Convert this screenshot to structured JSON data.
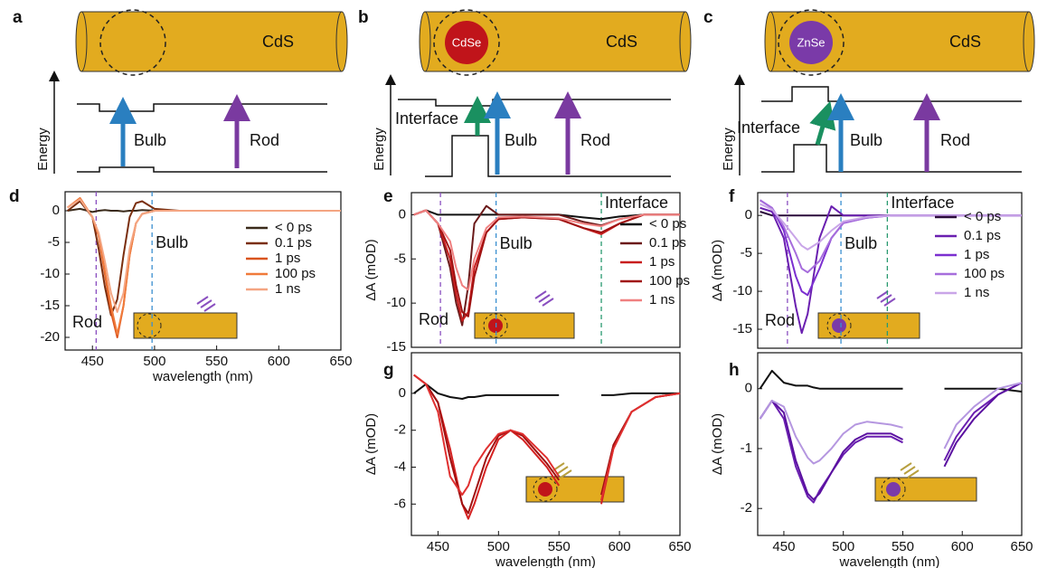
{
  "diagrams": [
    {
      "label": "a",
      "rod": "CdS",
      "energy_axis": "Energy",
      "arrows": [
        "Bulb",
        "Rod"
      ]
    },
    {
      "label": "b",
      "core": "CdSe",
      "rod": "CdS",
      "energy_axis": "Energy",
      "arrows": [
        "Interface",
        "Bulb",
        "Rod"
      ]
    },
    {
      "label": "c",
      "core": "ZnSe",
      "rod": "CdS",
      "energy_axis": "Energy",
      "arrows": [
        "Interface",
        "Bulb",
        "Rod"
      ]
    }
  ],
  "chart_data": [
    {
      "type": "line",
      "label": "d",
      "x_label": "wavelength (nm)",
      "x": [
        430,
        440,
        450,
        455,
        460,
        465,
        470,
        475,
        480,
        485,
        490,
        500,
        520,
        550,
        600,
        650
      ],
      "series": [
        {
          "name": "< 0 ps",
          "color": "#3a2a1a",
          "values": [
            0,
            0.3,
            -0.2,
            0,
            0.1,
            0,
            0,
            -0.1,
            0,
            0,
            0.1,
            0,
            0,
            0,
            0,
            0
          ]
        },
        {
          "name": "0.1 ps",
          "color": "#7a2e0e",
          "values": [
            0,
            1.5,
            -1,
            -6,
            -12,
            -16.5,
            -14,
            -7,
            -1,
            1.2,
            1.5,
            0.3,
            0,
            0,
            0,
            0
          ]
        },
        {
          "name": "1 ps",
          "color": "#d9541e",
          "values": [
            0.5,
            2,
            -1,
            -4,
            -10,
            -16,
            -20,
            -15,
            -7,
            -2,
            -0.5,
            0,
            0,
            0,
            0,
            0
          ]
        },
        {
          "name": "100 ps",
          "color": "#f07a3a",
          "values": [
            0.5,
            2,
            -1,
            -4,
            -9.5,
            -15,
            -19.5,
            -15,
            -7,
            -2,
            -0.5,
            0,
            0,
            0,
            0,
            0
          ]
        },
        {
          "name": "1 ns",
          "color": "#f4a582",
          "values": [
            0.5,
            1.8,
            -1,
            -3.5,
            -8,
            -13,
            -16,
            -13,
            -6,
            -2,
            -0.5,
            0,
            0,
            0,
            0,
            0
          ]
        }
      ],
      "xlim": [
        428,
        650
      ],
      "ylim": [
        -22,
        3
      ],
      "xticks": [
        450,
        500,
        550,
        600,
        650
      ],
      "yticks": [
        0,
        -5,
        -10,
        -15,
        -20
      ],
      "vlines": [
        {
          "x": 453,
          "color": "#8a4fc0",
          "text": "Rod"
        },
        {
          "x": 498,
          "color": "#3a8fd0",
          "text": "Bulb"
        }
      ],
      "legend": "right"
    },
    {
      "type": "line",
      "label": "e",
      "y_label": "ΔA (mOD)",
      "x": [
        430,
        440,
        450,
        460,
        465,
        470,
        475,
        480,
        490,
        500,
        520,
        550,
        570,
        585,
        600,
        620,
        650
      ],
      "series": [
        {
          "name": "< 0 ps",
          "color": "#111111",
          "values": [
            0,
            0.5,
            0,
            0,
            0,
            0,
            0,
            0,
            0,
            0,
            0,
            0,
            -0.3,
            -0.5,
            -0.2,
            0,
            0
          ]
        },
        {
          "name": "0.1 ps",
          "color": "#6b1a1a",
          "values": [
            0,
            0.5,
            -1,
            -6,
            -10,
            -12.5,
            -8,
            -1,
            1,
            0,
            0,
            0,
            -0.8,
            -1.2,
            -0.5,
            0,
            0
          ]
        },
        {
          "name": "1 ps",
          "color": "#c81e1e",
          "values": [
            0,
            0.5,
            -1,
            -5,
            -9,
            -12,
            -11,
            -6,
            -2,
            -0.5,
            -0.3,
            -0.5,
            -1.5,
            -2.2,
            -1,
            0,
            0
          ]
        },
        {
          "name": "100 ps",
          "color": "#a01212",
          "values": [
            0,
            0.5,
            -1,
            -4,
            -8,
            -11,
            -11.5,
            -7,
            -2,
            -0.5,
            -0.3,
            -0.5,
            -1.5,
            -2,
            -1,
            0,
            0
          ]
        },
        {
          "name": "1 ns",
          "color": "#f08080",
          "values": [
            0,
            0.5,
            -1,
            -3,
            -6,
            -8,
            -8.5,
            -5,
            -1.5,
            -0.3,
            -0.2,
            -0.4,
            -1,
            -1.3,
            -0.5,
            0,
            0
          ]
        }
      ],
      "xlim": [
        428,
        650
      ],
      "ylim": [
        -15,
        2.5
      ],
      "yticks": [
        0,
        -5,
        -10,
        -15
      ],
      "vlines": [
        {
          "x": 452,
          "color": "#8a4fc0",
          "text": "Rod"
        },
        {
          "x": 498,
          "color": "#3a8fd0",
          "text": "Bulb"
        },
        {
          "x": 585,
          "color": "#2a9a70",
          "text": "Interface"
        }
      ],
      "legend": "right"
    },
    {
      "type": "line",
      "label": "f",
      "y_label": "ΔA (mOD)",
      "x": [
        430,
        440,
        450,
        460,
        465,
        470,
        480,
        490,
        500,
        520,
        540,
        560,
        600,
        650
      ],
      "series": [
        {
          "name": "< 0 ps",
          "color": "#2a0a3a",
          "values": [
            0.5,
            0,
            0,
            0,
            0,
            0,
            0,
            0,
            0,
            0,
            0,
            0,
            0,
            0
          ]
        },
        {
          "name": "0.1 ps",
          "color": "#6a1fb0",
          "values": [
            1,
            0.5,
            -3,
            -12,
            -15.5,
            -13,
            -3,
            1.2,
            0,
            0,
            0,
            0,
            0,
            0
          ]
        },
        {
          "name": "1 ps",
          "color": "#7b2fd0",
          "values": [
            2,
            1,
            -2,
            -8,
            -10,
            -10.5,
            -7,
            -3,
            -1,
            -0.3,
            0,
            0,
            0,
            0
          ]
        },
        {
          "name": "100 ps",
          "color": "#a66ddc",
          "values": [
            2,
            1,
            -1.5,
            -5,
            -7,
            -7.5,
            -6,
            -3,
            -1,
            -0.3,
            0,
            0,
            0,
            0
          ]
        },
        {
          "name": "1 ns",
          "color": "#c9a5e8",
          "values": [
            1.5,
            0.8,
            -1,
            -3,
            -4,
            -4.5,
            -3.5,
            -2,
            -0.8,
            -0.2,
            0,
            0,
            0,
            0
          ]
        }
      ],
      "xlim": [
        428,
        650
      ],
      "ylim": [
        -17.5,
        3
      ],
      "yticks": [
        0,
        -5,
        -10,
        -15
      ],
      "vlines": [
        {
          "x": 453,
          "color": "#8a4fc0",
          "text": "Rod"
        },
        {
          "x": 498,
          "color": "#3a8fd0",
          "text": "Bulb"
        },
        {
          "x": 537,
          "color": "#2a9a70",
          "text": "Interface"
        }
      ],
      "legend": "right"
    },
    {
      "type": "line",
      "label": "g",
      "y_label": "ΔA (mOD)",
      "x_label": "wavelength (nm)",
      "x": [
        430,
        440,
        450,
        460,
        470,
        475,
        480,
        490,
        500,
        510,
        520,
        540,
        550,
        560,
        585,
        595,
        610,
        630,
        650
      ],
      "series": [
        {
          "color": "#111111",
          "values": [
            0,
            0.5,
            0,
            -0.2,
            -0.3,
            -0.2,
            -0.2,
            -0.1,
            -0.1,
            -0.1,
            -0.1,
            -0.1,
            -0.1,
            null,
            -0.1,
            -0.1,
            0,
            0,
            0
          ]
        },
        {
          "color": "#d42020",
          "values": [
            1,
            0.5,
            -0.5,
            -3,
            -6,
            -6.8,
            -6,
            -4,
            -2.5,
            -2,
            -2.5,
            -4,
            -5,
            null,
            -6,
            -3,
            -1,
            -0.2,
            0
          ]
        },
        {
          "color": "#a01010",
          "values": [
            1,
            0.5,
            -0.5,
            -3.5,
            -6,
            -6.5,
            -5.5,
            -3.5,
            -2.3,
            -2,
            -2.3,
            -3.8,
            -4.7,
            null,
            -5.5,
            -2.8,
            -1,
            -0.2,
            0
          ]
        },
        {
          "color": "#e03030",
          "values": [
            1,
            0.5,
            -1,
            -4.5,
            -5.5,
            -5,
            -4,
            -3,
            -2.2,
            -2,
            -2.2,
            -3.5,
            -4.5,
            null,
            -5.8,
            -3,
            -1,
            -0.2,
            0
          ]
        }
      ],
      "xlim": [
        428,
        650
      ],
      "ylim": [
        -7.7,
        2.2
      ],
      "xticks": [
        450,
        500,
        550,
        600,
        650
      ],
      "yticks": [
        0,
        -2,
        -4,
        -6
      ]
    },
    {
      "type": "line",
      "label": "h",
      "y_label": "ΔA (mOD)",
      "x_label": "wavelength (nm)",
      "x": [
        430,
        440,
        450,
        460,
        470,
        475,
        480,
        490,
        500,
        510,
        520,
        540,
        550,
        560,
        585,
        595,
        610,
        630,
        650
      ],
      "series": [
        {
          "color": "#111111",
          "values": [
            0,
            0.3,
            0.1,
            0.05,
            0.05,
            0.02,
            0,
            0,
            0,
            0,
            0,
            0,
            0,
            null,
            0,
            0,
            0,
            0,
            -0.05
          ]
        },
        {
          "color": "#6a1fb0",
          "values": [
            -0.5,
            -0.2,
            -0.5,
            -1.3,
            -1.8,
            -1.9,
            -1.7,
            -1.4,
            -1.1,
            -0.9,
            -0.8,
            -0.8,
            -0.9,
            null,
            -1.2,
            -0.8,
            -0.4,
            -0.1,
            0.1
          ]
        },
        {
          "color": "#5a10a0",
          "values": [
            -0.5,
            -0.2,
            -0.4,
            -1.2,
            -1.75,
            -1.85,
            -1.75,
            -1.4,
            -1.05,
            -0.85,
            -0.75,
            -0.75,
            -0.85,
            null,
            -1.3,
            -0.9,
            -0.5,
            -0.1,
            0.1
          ]
        },
        {
          "color": "#b597e0",
          "values": [
            -0.5,
            -0.2,
            -0.3,
            -0.8,
            -1.15,
            -1.25,
            -1.2,
            -1,
            -0.75,
            -0.6,
            -0.55,
            -0.6,
            -0.65,
            null,
            -1,
            -0.6,
            -0.3,
            0,
            0.1
          ]
        }
      ],
      "xlim": [
        428,
        650
      ],
      "ylim": [
        -2.45,
        0.6
      ],
      "xticks": [
        450,
        500,
        550,
        600,
        650
      ],
      "yticks": [
        0,
        -1,
        -2
      ]
    }
  ]
}
